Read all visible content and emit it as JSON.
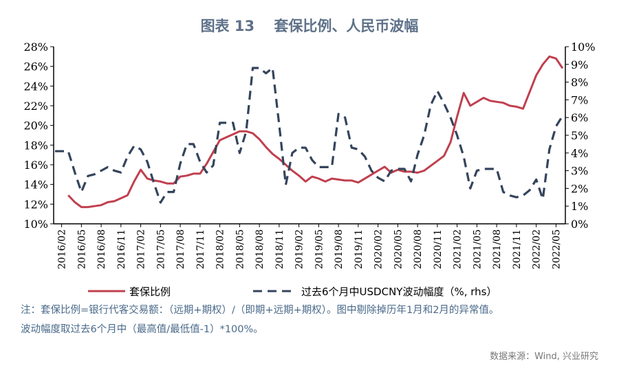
{
  "title": "图表 13　 套保比例、人民币波幅",
  "notes": [
    "注：套保比例=银行代客交易额：（远期+期权）/（即期+远期+期权）。图中剔除掉历年1月和2月的异常值。",
    "波动幅度取过去6个月中（最高值/最低值-1）*100%。"
  ],
  "source": "数据来源：Wind, 兴业研究",
  "chart_data": {
    "type": "line",
    "start_month": "2016/01",
    "x_tick_labels": [
      "2016/02",
      "2016/05",
      "2016/08",
      "2016/11",
      "2017/02",
      "2017/05",
      "2017/08",
      "2017/11",
      "2018/02",
      "2018/05",
      "2018/08",
      "2018/11",
      "2019/02",
      "2019/05",
      "2019/08",
      "2019/11",
      "2020/02",
      "2020/05",
      "2020/08",
      "2020/11",
      "2021/02",
      "2021/05",
      "2021/08",
      "2021/11",
      "2022/02",
      "2022/05"
    ],
    "y_left": {
      "range": [
        10,
        28
      ],
      "ticks": [
        "10%",
        "12%",
        "14%",
        "16%",
        "18%",
        "20%",
        "22%",
        "24%",
        "26%",
        "28%"
      ]
    },
    "y_right": {
      "range": [
        0,
        10
      ],
      "ticks": [
        "0%",
        "1%",
        "2%",
        "3%",
        "4%",
        "5%",
        "6%",
        "7%",
        "8%",
        "9%",
        "10%"
      ]
    },
    "series": [
      {
        "name": "套保比例",
        "axis": "left",
        "color": "#c0404f",
        "style": "solid",
        "values": [
          null,
          null,
          12.9,
          12.2,
          11.7,
          11.7,
          11.8,
          11.9,
          12.2,
          12.3,
          12.6,
          12.9,
          14.3,
          15.5,
          14.6,
          14.4,
          14.3,
          14.1,
          14.1,
          14.8,
          14.9,
          15.1,
          15.1,
          16.1,
          17.3,
          18.5,
          18.8,
          19.1,
          19.4,
          19.4,
          19.2,
          18.6,
          17.8,
          17.1,
          16.6,
          16.0,
          15.4,
          14.9,
          14.3,
          14.8,
          14.6,
          14.3,
          14.6,
          14.5,
          14.4,
          14.4,
          14.2,
          14.6,
          15.0,
          15.4,
          15.8,
          15.2,
          15.5,
          15.3,
          15.3,
          15.2,
          15.4,
          15.9,
          16.4,
          16.9,
          18.3,
          20.9,
          23.3,
          22.0,
          22.4,
          22.8,
          22.5,
          22.4,
          22.3,
          22.0,
          21.9,
          21.7,
          23.4,
          25.1,
          26.2,
          27.0,
          26.8,
          25.8
        ]
      },
      {
        "name": "过去6个月中USDCNY波动幅度（%, rhs）",
        "axis": "right",
        "color": "#34445c",
        "style": "dashed",
        "values": [
          4.1,
          4.1,
          4.1,
          2.9,
          1.8,
          2.7,
          2.8,
          3.0,
          3.2,
          3.0,
          2.9,
          3.8,
          4.4,
          4.2,
          3.5,
          2.3,
          1.2,
          1.8,
          1.8,
          3.4,
          4.5,
          4.5,
          3.5,
          2.9,
          3.3,
          5.7,
          5.7,
          5.7,
          4.0,
          5.2,
          8.8,
          8.8,
          8.5,
          8.8,
          5.6,
          2.2,
          4.0,
          4.3,
          4.3,
          3.6,
          3.2,
          3.2,
          3.2,
          6.2,
          6.0,
          4.3,
          4.2,
          3.8,
          3.0,
          2.6,
          2.4,
          3.0,
          3.1,
          3.1,
          2.4,
          3.9,
          5.0,
          6.7,
          7.5,
          6.8,
          6.0,
          5.0,
          3.8,
          2.0,
          3.0,
          3.1,
          3.1,
          3.1,
          1.8,
          1.6,
          1.5,
          1.6,
          1.9,
          2.5,
          1.4,
          4.2,
          5.5,
          6.1
        ]
      }
    ]
  }
}
